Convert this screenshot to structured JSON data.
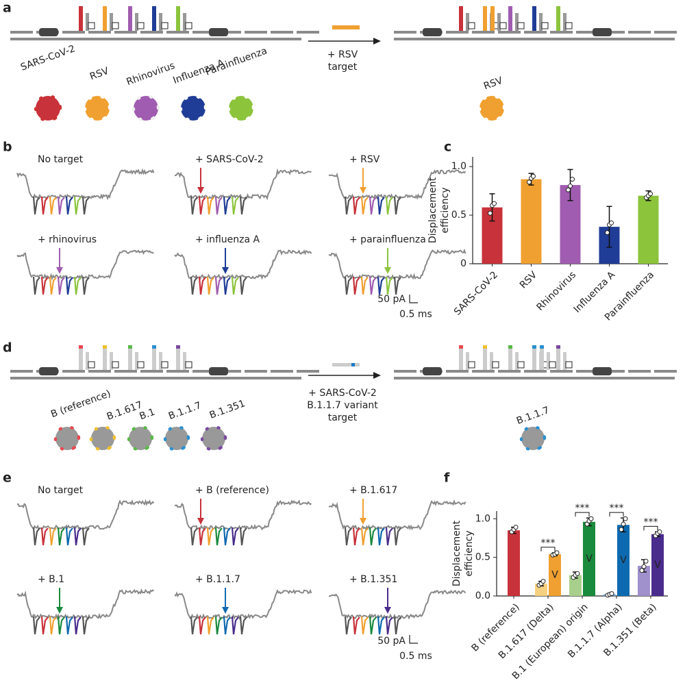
{
  "panel_labels": [
    "a",
    "b",
    "c",
    "d",
    "e",
    "f"
  ],
  "panel_a": {
    "viruses": [
      "SARS-CoV-2",
      "RSV",
      "Rhinovirus",
      "Influenza A",
      "Parainfluenza"
    ],
    "arrow_label": [
      "+ RSV",
      "target"
    ],
    "result_label": "RSV"
  },
  "panel_b": {
    "traces": [
      "No target",
      "+ SARS-CoV-2",
      "+ RSV",
      "+ rhinovirus",
      "+ influenza A",
      "+ parainfluenza"
    ],
    "scale_current": "50 pA",
    "scale_time": "0.5 ms"
  },
  "panel_d": {
    "variants": [
      "B (reference)",
      "B.1.617",
      "B.1",
      "B.1.1.7",
      "B.1.351"
    ],
    "arrow_label": [
      "+ SARS-CoV-2",
      "B.1.1.7 variant",
      "target"
    ],
    "result_label": "B.1.1.7"
  },
  "panel_e": {
    "traces": [
      "No target",
      "+ B (reference)",
      "+ B.1.617",
      "+ B.1",
      "+ B.1.1.7",
      "+ B.1.351"
    ],
    "scale_current": "50 pA",
    "scale_time": "0.5 ms"
  },
  "chart_data": [
    {
      "type": "bar",
      "ylabel": [
        "Displacement",
        "efficiency"
      ],
      "categories": [
        "SARS-CoV-2",
        "RSV",
        "Rhinovirus",
        "Influenza A",
        "Parainfluenza"
      ],
      "colors": [
        "#c8323a",
        "#f0a030",
        "#a05cb0",
        "#1f3c96",
        "#8cc43c"
      ],
      "values": [
        0.58,
        0.87,
        0.81,
        0.38,
        0.7
      ],
      "errors": [
        0.14,
        0.06,
        0.16,
        0.21,
        0.05
      ],
      "points": [
        [
          0.52,
          0.6,
          0.62
        ],
        [
          0.84,
          0.88,
          0.9
        ],
        [
          0.76,
          0.8,
          0.87
        ],
        [
          0.32,
          0.4,
          0.42
        ],
        [
          0.68,
          0.7,
          0.72
        ]
      ],
      "ylim": [
        0,
        1.1
      ],
      "yticks": [
        0,
        0.5,
        {
          "value": 1,
          "label": "1.0"
        }
      ]
    },
    {
      "type": "grouped_bar",
      "ylabel": [
        "Displacement",
        "efficiency"
      ],
      "categories": [
        "B (reference)",
        "B.1.617 (Delta)",
        "B.1 (European) origin",
        "B.1.1.7 (Alpha)",
        "B.1.351 (Beta)"
      ],
      "label_colors": [
        "#c8323a",
        "#f0a030",
        "#1a8a3c",
        "#0e6ab0",
        "#4a2c8c"
      ],
      "series": [
        {
          "colors": [
            "#c8323a",
            "#f5d080",
            "#a8d08c",
            "#6aa0d8",
            "#a090cc"
          ],
          "values": [
            0.85,
            0.16,
            0.27,
            0.02,
            0.39
          ],
          "errors": [
            0.04,
            0.03,
            0.04,
            0.01,
            0.08
          ],
          "points": [
            [
              0.83,
              0.86,
              0.89
            ],
            [
              0.14,
              0.16,
              0.19
            ],
            [
              0.24,
              0.27,
              0.29
            ],
            [
              0.01,
              0.02,
              0.03
            ],
            [
              0.33,
              0.38,
              0.45
            ]
          ]
        },
        {
          "name": "V",
          "colors": [
            null,
            "#f0a030",
            "#1a8a3c",
            "#0e6ab0",
            "#4a2c8c"
          ],
          "values": [
            null,
            0.54,
            0.96,
            0.92,
            0.8
          ],
          "errors": [
            null,
            0.02,
            0.05,
            0.09,
            0.03
          ],
          "points": [
            null,
            [
              0.53,
              0.54,
              0.56
            ],
            [
              0.93,
              0.97,
              1.0
            ],
            [
              0.86,
              0.93,
              1.0
            ],
            [
              0.78,
              0.81,
              0.83
            ]
          ]
        }
      ],
      "significance": [
        null,
        "***",
        "***",
        "***",
        "***"
      ],
      "ylim": [
        0,
        1.1
      ],
      "yticks": [
        {
          "value": 0,
          "label": "0.0"
        },
        0.5,
        {
          "value": 1,
          "label": "1.0"
        }
      ]
    }
  ]
}
